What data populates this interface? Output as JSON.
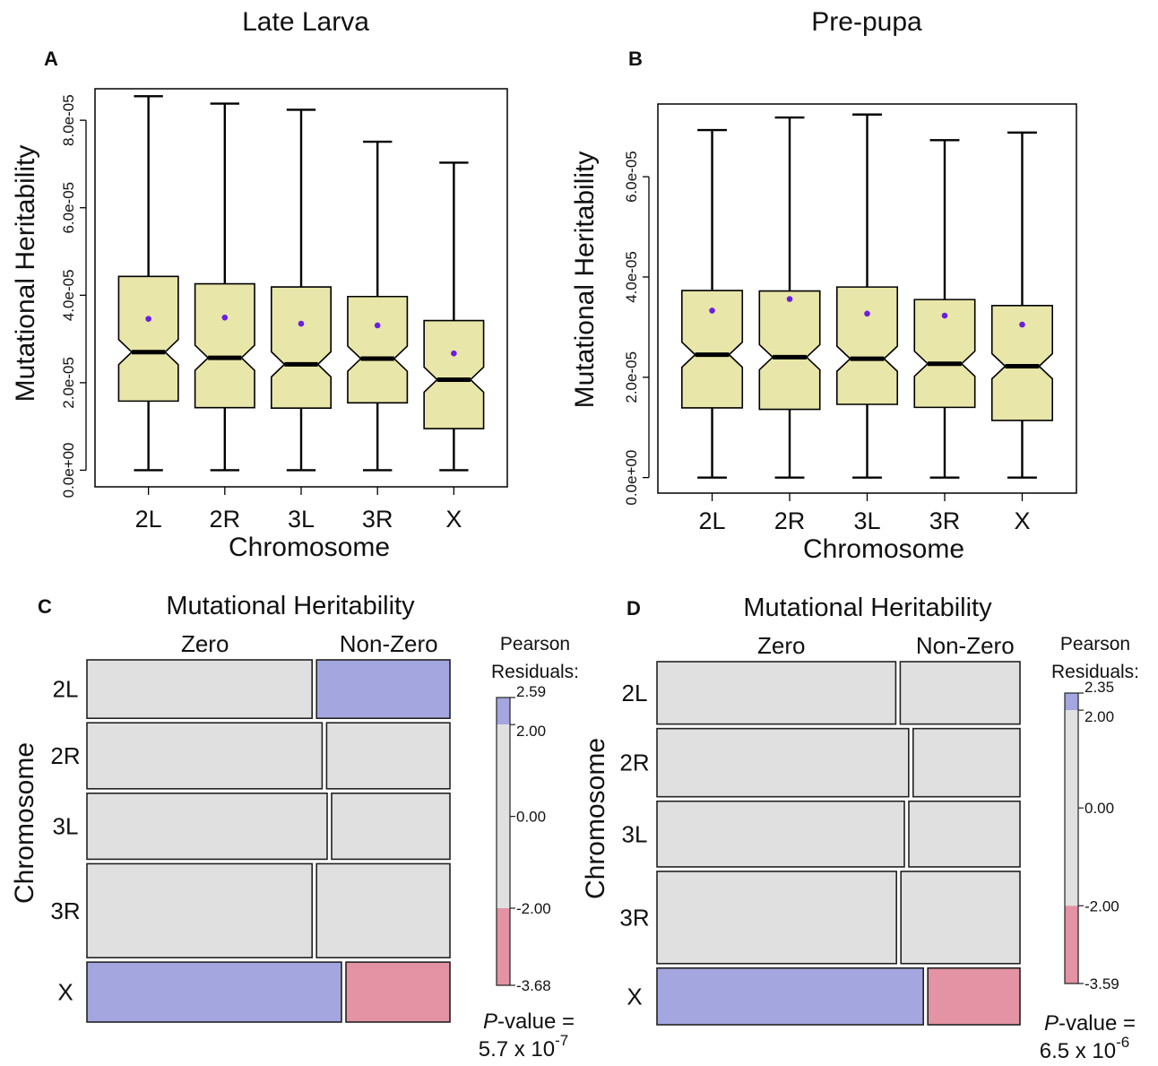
{
  "chart_data": [
    {
      "type": "box",
      "panel_label": "A",
      "title": "Late Larva",
      "xlabel": "Chromosome",
      "ylabel": "Mutational Heritability",
      "categories": [
        "2L",
        "2R",
        "3L",
        "3R",
        "X"
      ],
      "y_ticks": [
        "0.0e+00",
        "2.0e-05",
        "4.0e-05",
        "6.0e-05",
        "8.0e-05"
      ],
      "y_tick_values": [
        0,
        2e-05,
        4e-05,
        6e-05,
        8e-05
      ],
      "ylim": [
        -3.8e-06,
        8.72e-05
      ],
      "box_fill": "#e8e6a8",
      "mean_color": "#6a1fe0",
      "boxes": [
        {
          "min": 0,
          "q1": 1.58e-05,
          "median": 2.7e-05,
          "q3": 4.43e-05,
          "max": 8.55e-05,
          "mean": 3.46e-05
        },
        {
          "min": 0,
          "q1": 1.43e-05,
          "median": 2.57e-05,
          "q3": 4.26e-05,
          "max": 8.38e-05,
          "mean": 3.49e-05
        },
        {
          "min": 0,
          "q1": 1.42e-05,
          "median": 2.42e-05,
          "q3": 4.19e-05,
          "max": 8.24e-05,
          "mean": 3.35e-05
        },
        {
          "min": 0,
          "q1": 1.54e-05,
          "median": 2.55e-05,
          "q3": 3.97e-05,
          "max": 7.51e-05,
          "mean": 3.31e-05
        },
        {
          "min": 0,
          "q1": 9.5e-06,
          "median": 2.07e-05,
          "q3": 3.42e-05,
          "max": 7.03e-05,
          "mean": 2.67e-05
        }
      ]
    },
    {
      "type": "box",
      "panel_label": "B",
      "title": "Pre-pupa",
      "xlabel": "Chromosome",
      "ylabel": "Mutational Heritability",
      "categories": [
        "2L",
        "2R",
        "3L",
        "3R",
        "X"
      ],
      "y_ticks": [
        "0.0e+00",
        "2.0e-05",
        "4.0e-05",
        "6.0e-05"
      ],
      "y_tick_values": [
        0,
        2e-05,
        4e-05,
        6e-05
      ],
      "ylim": [
        -3.1e-06,
        7.45e-05
      ],
      "box_fill": "#e8e6a8",
      "mean_color": "#6a1fe0",
      "boxes": [
        {
          "min": 0,
          "q1": 1.39e-05,
          "median": 2.45e-05,
          "q3": 3.73e-05,
          "max": 6.93e-05,
          "mean": 3.33e-05
        },
        {
          "min": 0,
          "q1": 1.36e-05,
          "median": 2.4e-05,
          "q3": 3.72e-05,
          "max": 7.18e-05,
          "mean": 3.56e-05
        },
        {
          "min": 0,
          "q1": 1.46e-05,
          "median": 2.37e-05,
          "q3": 3.8e-05,
          "max": 7.24e-05,
          "mean": 3.27e-05
        },
        {
          "min": 0,
          "q1": 1.4e-05,
          "median": 2.27e-05,
          "q3": 3.55e-05,
          "max": 6.73e-05,
          "mean": 3.23e-05
        },
        {
          "min": 0,
          "q1": 1.14e-05,
          "median": 2.22e-05,
          "q3": 3.43e-05,
          "max": 6.88e-05,
          "mean": 3.05e-05
        }
      ]
    },
    {
      "type": "mosaic",
      "panel_label": "C",
      "title": "Mutational Heritability",
      "ylabel": "Chromosome",
      "columns": [
        "Zero",
        "Non-Zero"
      ],
      "rows": [
        "2L",
        "2R",
        "3L",
        "3R",
        "X"
      ],
      "row_fractions": [
        0.155,
        0.175,
        0.175,
        0.249,
        0.159
      ],
      "zero_fractions": [
        0.628,
        0.656,
        0.67,
        0.628,
        0.71
      ],
      "cell_residual_class": [
        [
          "neutral",
          "positive"
        ],
        [
          "neutral",
          "neutral"
        ],
        [
          "neutral",
          "neutral"
        ],
        [
          "neutral",
          "neutral"
        ],
        [
          "positive",
          "negative"
        ]
      ],
      "legend": {
        "title": [
          "Pearson",
          "Residuals:"
        ],
        "max": 2.59,
        "min": -3.68,
        "ticks": [
          "2.59",
          "2.00",
          "0.00",
          "-2.00",
          "-3.68"
        ],
        "tick_values": [
          2.59,
          2.0,
          0.0,
          -2.0,
          -3.68
        ],
        "colors": {
          "positive": "#a4a6e0",
          "neutral": "#e0e0e0",
          "negative": "#e393a3"
        }
      },
      "p_value": {
        "label_italic": "P",
        "label_rest": "-value =",
        "mantissa": "5.7 x 10",
        "exponent": "-7"
      }
    },
    {
      "type": "mosaic",
      "panel_label": "D",
      "title": "Mutational Heritability",
      "ylabel": "Chromosome",
      "columns": [
        "Zero",
        "Non-Zero"
      ],
      "rows": [
        "2L",
        "2R",
        "3L",
        "3R",
        "X"
      ],
      "row_fractions": [
        0.174,
        0.19,
        0.183,
        0.257,
        0.158
      ],
      "zero_fractions": [
        0.666,
        0.702,
        0.69,
        0.668,
        0.743
      ],
      "cell_residual_class": [
        [
          "neutral",
          "neutral"
        ],
        [
          "neutral",
          "neutral"
        ],
        [
          "neutral",
          "neutral"
        ],
        [
          "neutral",
          "neutral"
        ],
        [
          "positive",
          "negative"
        ]
      ],
      "legend": {
        "title": [
          "Pearson",
          "Residuals:"
        ],
        "max": 2.35,
        "min": -3.59,
        "ticks": [
          "2.35",
          "2.00",
          "0.00",
          "-2.00",
          "-3.59"
        ],
        "tick_values": [
          2.35,
          2.0,
          0.0,
          -2.0,
          -3.59
        ],
        "colors": {
          "positive": "#a4a6e0",
          "neutral": "#e0e0e0",
          "negative": "#e393a3"
        }
      },
      "p_value": {
        "label_italic": "P",
        "label_rest": "-value =",
        "mantissa": "6.5 x 10",
        "exponent": "-6"
      }
    }
  ]
}
